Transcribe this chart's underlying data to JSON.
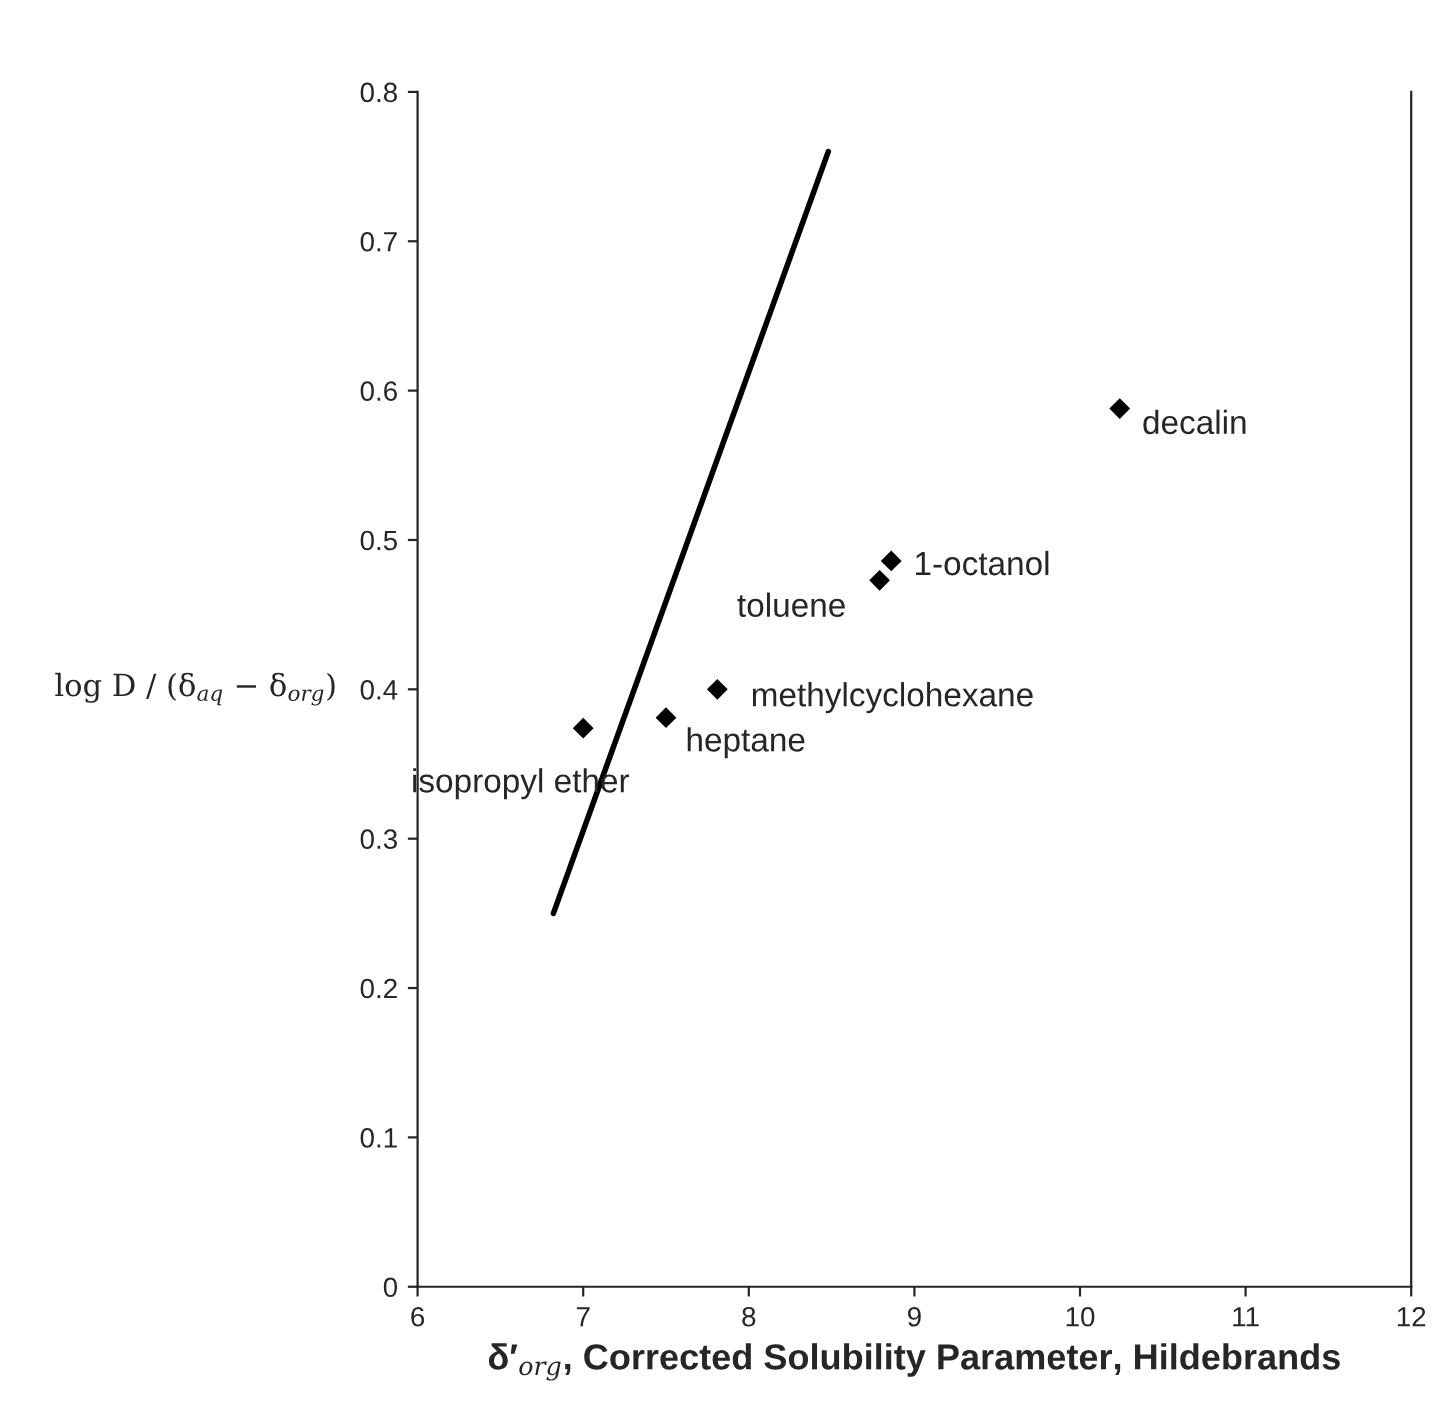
{
  "chart_data": {
    "type": "scatter",
    "xlabel": "δ′$_{org}$, Corrected Solubility Parameter, Hildebrands",
    "ylabel": "log D / (δ$_{aq}$ − δ$_{org}$)",
    "series": [
      {
        "color": "#000000",
        "marker": "diamond",
        "x": [
          7.0,
          7.5,
          7.81,
          8.79,
          8.86,
          10.24
        ],
        "values": [
          0.374,
          0.381,
          0.4,
          0.473,
          0.486,
          0.588
        ]
      },
      {
        "type": "line",
        "color": "#000000",
        "marker": "none",
        "line_style": "solid",
        "x": [
          6.82,
          8.48
        ],
        "values": [
          0.25,
          0.76
        ]
      }
    ],
    "annotations": [
      {
        "text": "isopropyl ether",
        "x": 7.0,
        "y": 0.374
      },
      {
        "text": "heptane",
        "x": 7.5,
        "y": 0.381
      },
      {
        "text": "methylcyclohexane",
        "x": 7.81,
        "y": 0.4
      },
      {
        "text": "toluene",
        "x": 8.79,
        "y": 0.473
      },
      {
        "text": "1-octanol",
        "x": 8.86,
        "y": 0.486
      },
      {
        "text": "decalin",
        "x": 10.24,
        "y": 0.588
      }
    ],
    "xlim": [
      6,
      12
    ],
    "xticks": [
      6,
      7,
      8,
      9,
      10,
      11,
      12
    ],
    "ylim": [
      0,
      0.8
    ],
    "yticks": [
      0,
      0.1,
      0.2,
      0.3,
      0.4,
      0.5,
      0.6,
      0.7,
      0.8
    ],
    "grid": false,
    "legend": false
  }
}
